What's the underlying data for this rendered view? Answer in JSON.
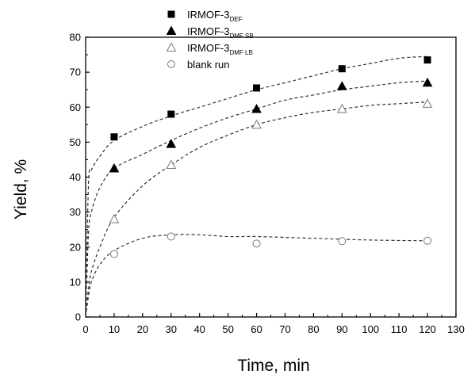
{
  "chart_data": {
    "type": "scatter",
    "xlabel": "Time, min",
    "ylabel": "Yield, %",
    "xlim": [
      0,
      130
    ],
    "ylim": [
      0,
      80
    ],
    "xticks": [
      0,
      10,
      20,
      30,
      40,
      50,
      60,
      70,
      80,
      90,
      100,
      110,
      120,
      130
    ],
    "yticks": [
      0,
      10,
      20,
      30,
      40,
      50,
      60,
      70,
      80
    ],
    "grid": false,
    "legend_position": "top-left",
    "series": [
      {
        "name": "IRMOF-3",
        "name_sub": "DEF",
        "marker": "square-filled",
        "x": [
          10,
          30,
          60,
          90,
          120
        ],
        "y": [
          51.5,
          58,
          65.5,
          71,
          73.5
        ],
        "fit": [
          [
            0,
            0
          ],
          [
            1,
            38
          ],
          [
            2,
            42
          ],
          [
            5,
            46
          ],
          [
            10,
            50.5
          ],
          [
            20,
            54.5
          ],
          [
            30,
            57.5
          ],
          [
            40,
            60
          ],
          [
            50,
            62.5
          ],
          [
            60,
            65
          ],
          [
            70,
            67
          ],
          [
            80,
            69
          ],
          [
            90,
            71
          ],
          [
            100,
            72.5
          ],
          [
            110,
            74
          ],
          [
            120,
            74.5
          ]
        ]
      },
      {
        "name": "IRMOF-3",
        "name_sub": "DMF SB",
        "marker": "triangle-filled",
        "x": [
          10,
          30,
          60,
          90,
          120
        ],
        "y": [
          42.5,
          49.5,
          59.5,
          66,
          67
        ],
        "fit": [
          [
            0,
            0
          ],
          [
            1,
            24
          ],
          [
            2,
            30
          ],
          [
            5,
            37
          ],
          [
            10,
            42.5
          ],
          [
            20,
            46.5
          ],
          [
            30,
            50.5
          ],
          [
            40,
            54
          ],
          [
            50,
            57
          ],
          [
            60,
            59.5
          ],
          [
            70,
            62
          ],
          [
            80,
            63.5
          ],
          [
            90,
            65
          ],
          [
            100,
            66
          ],
          [
            110,
            67
          ],
          [
            120,
            67.5
          ]
        ]
      },
      {
        "name": "IRMOF-3",
        "name_sub": "DMF LB",
        "marker": "triangle-open",
        "x": [
          10,
          30,
          60,
          90,
          120
        ],
        "y": [
          28,
          43.5,
          55,
          59.5,
          61
        ],
        "fit": [
          [
            0,
            0
          ],
          [
            1,
            8
          ],
          [
            2,
            13
          ],
          [
            5,
            20
          ],
          [
            10,
            28.5
          ],
          [
            20,
            37.5
          ],
          [
            30,
            43.5
          ],
          [
            40,
            48.5
          ],
          [
            50,
            52
          ],
          [
            60,
            55
          ],
          [
            70,
            57
          ],
          [
            80,
            58.5
          ],
          [
            90,
            59.5
          ],
          [
            100,
            60.5
          ],
          [
            110,
            61
          ],
          [
            120,
            61.5
          ]
        ]
      },
      {
        "name": "blank run",
        "name_sub": "",
        "marker": "circle-open",
        "x": [
          10,
          30,
          60,
          90,
          120
        ],
        "y": [
          18,
          23,
          21,
          21.7,
          21.8
        ],
        "fit": [
          [
            0,
            0
          ],
          [
            1,
            6
          ],
          [
            2,
            10
          ],
          [
            5,
            15
          ],
          [
            10,
            19
          ],
          [
            20,
            22.5
          ],
          [
            30,
            23.5
          ],
          [
            40,
            23.5
          ],
          [
            50,
            23
          ],
          [
            60,
            23
          ],
          [
            80,
            22.5
          ],
          [
            100,
            22
          ],
          [
            120,
            21.8
          ]
        ]
      }
    ]
  }
}
